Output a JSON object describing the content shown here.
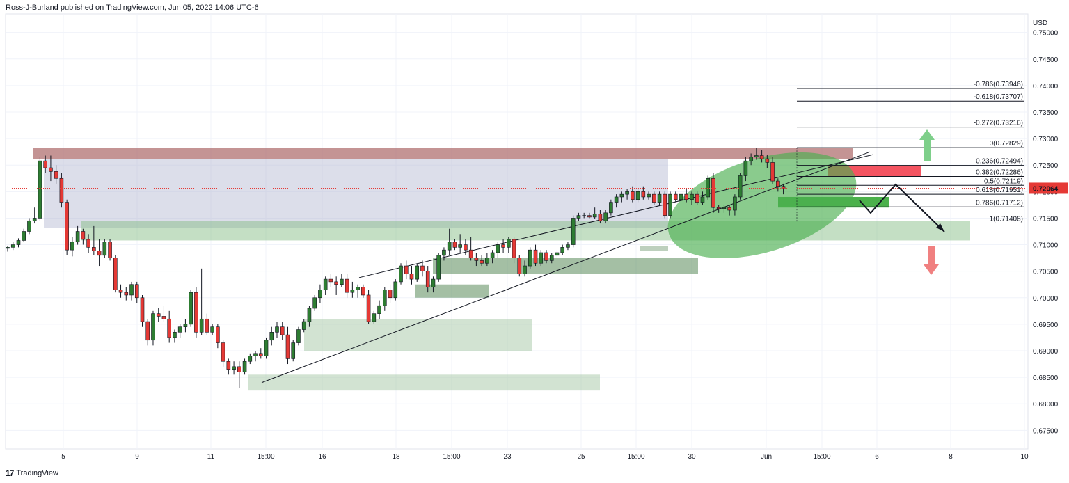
{
  "header": {
    "text": "Ross-J-Burland published on TradingView.com, Jun 05, 2022 14:06 UTC-6"
  },
  "footer": {
    "brand": "TradingView"
  },
  "colors": {
    "bull": "#2e7d32",
    "bear": "#e53935",
    "zone": "#7cb87c",
    "resistance": "#b07070",
    "ellipse": "#4caf50",
    "current_price": "#e53935"
  },
  "chart_data": {
    "type": "candlestick",
    "currency": "USD",
    "ylim": [
      0.6715,
      0.7535
    ],
    "y_ticks": [
      "0.75000",
      "0.74500",
      "0.74000",
      "0.73500",
      "0.73000",
      "0.72500",
      "0.72000",
      "0.71500",
      "0.71000",
      "0.70500",
      "0.70000",
      "0.69500",
      "0.69000",
      "0.68500",
      "0.68000",
      "0.67500"
    ],
    "x_ticks": [
      "5",
      "9",
      "11",
      "15:00",
      "16",
      "18",
      "15:00",
      "23",
      "25",
      "15:00",
      "30",
      "Jun",
      "15:00",
      "6",
      "8",
      "10"
    ],
    "current_price": "0.72064",
    "fib_levels": [
      {
        "label": "-0.786(0.73946)",
        "value": 0.73946
      },
      {
        "label": "-0.618(0.73707)",
        "value": 0.73707
      },
      {
        "label": "-0.272(0.73216)",
        "value": 0.73216
      },
      {
        "label": "0(0.72829)",
        "value": 0.72829
      },
      {
        "label": "0.236(0.72494)",
        "value": 0.72494
      },
      {
        "label": "0.382(0.72286)",
        "value": 0.72286
      },
      {
        "label": "0.5(0.72119)",
        "value": 0.72119
      },
      {
        "label": "0.618(0.71951)",
        "value": 0.71951
      },
      {
        "label": "0.786(0.71712)",
        "value": 0.71712
      },
      {
        "label": "1(0.71408)",
        "value": 0.71408
      }
    ],
    "candles": [
      {
        "o": 0.7093,
        "h": 0.7098,
        "l": 0.7087,
        "c": 0.7095
      },
      {
        "o": 0.7095,
        "h": 0.7105,
        "l": 0.709,
        "c": 0.71
      },
      {
        "o": 0.71,
        "h": 0.7112,
        "l": 0.7095,
        "c": 0.7108
      },
      {
        "o": 0.7108,
        "h": 0.713,
        "l": 0.7105,
        "c": 0.7125
      },
      {
        "o": 0.7125,
        "h": 0.715,
        "l": 0.712,
        "c": 0.7145
      },
      {
        "o": 0.7145,
        "h": 0.717,
        "l": 0.714,
        "c": 0.715
      },
      {
        "o": 0.715,
        "h": 0.7265,
        "l": 0.7145,
        "c": 0.7258
      },
      {
        "o": 0.7258,
        "h": 0.7268,
        "l": 0.7235,
        "c": 0.7245
      },
      {
        "o": 0.7245,
        "h": 0.7268,
        "l": 0.722,
        "c": 0.7238
      },
      {
        "o": 0.7238,
        "h": 0.725,
        "l": 0.7215,
        "c": 0.7225
      },
      {
        "o": 0.7225,
        "h": 0.7235,
        "l": 0.717,
        "c": 0.718
      },
      {
        "o": 0.718,
        "h": 0.7185,
        "l": 0.708,
        "c": 0.709
      },
      {
        "o": 0.709,
        "h": 0.7115,
        "l": 0.7078,
        "c": 0.7105
      },
      {
        "o": 0.7105,
        "h": 0.7135,
        "l": 0.71,
        "c": 0.7125
      },
      {
        "o": 0.7125,
        "h": 0.713,
        "l": 0.71,
        "c": 0.711
      },
      {
        "o": 0.711,
        "h": 0.712,
        "l": 0.7085,
        "c": 0.7095
      },
      {
        "o": 0.7095,
        "h": 0.7135,
        "l": 0.708,
        "c": 0.7088
      },
      {
        "o": 0.7088,
        "h": 0.711,
        "l": 0.706,
        "c": 0.708
      },
      {
        "o": 0.708,
        "h": 0.711,
        "l": 0.7075,
        "c": 0.7105
      },
      {
        "o": 0.7105,
        "h": 0.711,
        "l": 0.707,
        "c": 0.7075
      },
      {
        "o": 0.7075,
        "h": 0.708,
        "l": 0.701,
        "c": 0.7015
      },
      {
        "o": 0.7015,
        "h": 0.7025,
        "l": 0.7,
        "c": 0.701
      },
      {
        "o": 0.701,
        "h": 0.702,
        "l": 0.6995,
        "c": 0.7005
      },
      {
        "o": 0.7005,
        "h": 0.703,
        "l": 0.6995,
        "c": 0.7025
      },
      {
        "o": 0.7025,
        "h": 0.703,
        "l": 0.699,
        "c": 0.7
      },
      {
        "o": 0.7,
        "h": 0.7005,
        "l": 0.6945,
        "c": 0.6955
      },
      {
        "o": 0.6955,
        "h": 0.696,
        "l": 0.691,
        "c": 0.692
      },
      {
        "o": 0.692,
        "h": 0.6975,
        "l": 0.691,
        "c": 0.697
      },
      {
        "o": 0.697,
        "h": 0.698,
        "l": 0.6955,
        "c": 0.6965
      },
      {
        "o": 0.6965,
        "h": 0.6985,
        "l": 0.6955,
        "c": 0.696
      },
      {
        "o": 0.696,
        "h": 0.6975,
        "l": 0.6915,
        "c": 0.6925
      },
      {
        "o": 0.6925,
        "h": 0.694,
        "l": 0.6915,
        "c": 0.6935
      },
      {
        "o": 0.6935,
        "h": 0.695,
        "l": 0.6925,
        "c": 0.6945
      },
      {
        "o": 0.6945,
        "h": 0.696,
        "l": 0.6935,
        "c": 0.695
      },
      {
        "o": 0.695,
        "h": 0.7015,
        "l": 0.6945,
        "c": 0.701
      },
      {
        "o": 0.701,
        "h": 0.702,
        "l": 0.6925,
        "c": 0.6935
      },
      {
        "o": 0.6935,
        "h": 0.7055,
        "l": 0.693,
        "c": 0.696
      },
      {
        "o": 0.696,
        "h": 0.697,
        "l": 0.693,
        "c": 0.6935
      },
      {
        "o": 0.6935,
        "h": 0.695,
        "l": 0.693,
        "c": 0.6945
      },
      {
        "o": 0.6945,
        "h": 0.695,
        "l": 0.6905,
        "c": 0.6915
      },
      {
        "o": 0.6915,
        "h": 0.692,
        "l": 0.687,
        "c": 0.688
      },
      {
        "o": 0.688,
        "h": 0.6885,
        "l": 0.6855,
        "c": 0.6865
      },
      {
        "o": 0.6865,
        "h": 0.688,
        "l": 0.6855,
        "c": 0.687
      },
      {
        "o": 0.687,
        "h": 0.688,
        "l": 0.683,
        "c": 0.686
      },
      {
        "o": 0.686,
        "h": 0.6885,
        "l": 0.6855,
        "c": 0.688
      },
      {
        "o": 0.688,
        "h": 0.6895,
        "l": 0.6875,
        "c": 0.689
      },
      {
        "o": 0.689,
        "h": 0.69,
        "l": 0.688,
        "c": 0.6895
      },
      {
        "o": 0.6895,
        "h": 0.6905,
        "l": 0.6885,
        "c": 0.689
      },
      {
        "o": 0.689,
        "h": 0.6925,
        "l": 0.6885,
        "c": 0.692
      },
      {
        "o": 0.692,
        "h": 0.6945,
        "l": 0.691,
        "c": 0.6935
      },
      {
        "o": 0.6935,
        "h": 0.6955,
        "l": 0.6925,
        "c": 0.6945
      },
      {
        "o": 0.6945,
        "h": 0.6955,
        "l": 0.692,
        "c": 0.693
      },
      {
        "o": 0.693,
        "h": 0.6945,
        "l": 0.6875,
        "c": 0.6885
      },
      {
        "o": 0.6885,
        "h": 0.692,
        "l": 0.688,
        "c": 0.6915
      },
      {
        "o": 0.6915,
        "h": 0.6945,
        "l": 0.691,
        "c": 0.694
      },
      {
        "o": 0.694,
        "h": 0.696,
        "l": 0.6935,
        "c": 0.6955
      },
      {
        "o": 0.6955,
        "h": 0.6985,
        "l": 0.6945,
        "c": 0.698
      },
      {
        "o": 0.698,
        "h": 0.7005,
        "l": 0.6975,
        "c": 0.7
      },
      {
        "o": 0.7,
        "h": 0.7025,
        "l": 0.699,
        "c": 0.7015
      },
      {
        "o": 0.7015,
        "h": 0.704,
        "l": 0.7005,
        "c": 0.7035
      },
      {
        "o": 0.7035,
        "h": 0.7045,
        "l": 0.702,
        "c": 0.703
      },
      {
        "o": 0.703,
        "h": 0.704,
        "l": 0.7005,
        "c": 0.7025
      },
      {
        "o": 0.7025,
        "h": 0.7045,
        "l": 0.702,
        "c": 0.7035
      },
      {
        "o": 0.7035,
        "h": 0.7045,
        "l": 0.7,
        "c": 0.701
      },
      {
        "o": 0.701,
        "h": 0.703,
        "l": 0.7,
        "c": 0.7015
      },
      {
        "o": 0.7015,
        "h": 0.7025,
        "l": 0.7,
        "c": 0.702
      },
      {
        "o": 0.702,
        "h": 0.7025,
        "l": 0.7,
        "c": 0.7005
      },
      {
        "o": 0.7005,
        "h": 0.7015,
        "l": 0.695,
        "c": 0.6955
      },
      {
        "o": 0.6955,
        "h": 0.6975,
        "l": 0.695,
        "c": 0.697
      },
      {
        "o": 0.697,
        "h": 0.6995,
        "l": 0.696,
        "c": 0.6985
      },
      {
        "o": 0.6985,
        "h": 0.702,
        "l": 0.6975,
        "c": 0.7015
      },
      {
        "o": 0.7015,
        "h": 0.7025,
        "l": 0.699,
        "c": 0.7
      },
      {
        "o": 0.7,
        "h": 0.7035,
        "l": 0.6995,
        "c": 0.703
      },
      {
        "o": 0.703,
        "h": 0.7065,
        "l": 0.7025,
        "c": 0.706
      },
      {
        "o": 0.706,
        "h": 0.707,
        "l": 0.7035,
        "c": 0.7045
      },
      {
        "o": 0.7045,
        "h": 0.706,
        "l": 0.7025,
        "c": 0.7035
      },
      {
        "o": 0.7035,
        "h": 0.7065,
        "l": 0.703,
        "c": 0.706
      },
      {
        "o": 0.706,
        "h": 0.707,
        "l": 0.704,
        "c": 0.705
      },
      {
        "o": 0.705,
        "h": 0.706,
        "l": 0.701,
        "c": 0.702
      },
      {
        "o": 0.702,
        "h": 0.704,
        "l": 0.701,
        "c": 0.7035
      },
      {
        "o": 0.7035,
        "h": 0.7085,
        "l": 0.703,
        "c": 0.708
      },
      {
        "o": 0.708,
        "h": 0.7095,
        "l": 0.707,
        "c": 0.709
      },
      {
        "o": 0.709,
        "h": 0.713,
        "l": 0.708,
        "c": 0.7105
      },
      {
        "o": 0.7105,
        "h": 0.711,
        "l": 0.709,
        "c": 0.7095
      },
      {
        "o": 0.7095,
        "h": 0.712,
        "l": 0.7085,
        "c": 0.71
      },
      {
        "o": 0.71,
        "h": 0.711,
        "l": 0.708,
        "c": 0.709
      },
      {
        "o": 0.709,
        "h": 0.7115,
        "l": 0.707,
        "c": 0.7075
      },
      {
        "o": 0.7075,
        "h": 0.7085,
        "l": 0.706,
        "c": 0.707
      },
      {
        "o": 0.707,
        "h": 0.708,
        "l": 0.706,
        "c": 0.7065
      },
      {
        "o": 0.7065,
        "h": 0.7085,
        "l": 0.706,
        "c": 0.7075
      },
      {
        "o": 0.7075,
        "h": 0.709,
        "l": 0.7065,
        "c": 0.7085
      },
      {
        "o": 0.7085,
        "h": 0.7105,
        "l": 0.7075,
        "c": 0.71
      },
      {
        "o": 0.71,
        "h": 0.711,
        "l": 0.7085,
        "c": 0.7095
      },
      {
        "o": 0.7095,
        "h": 0.7115,
        "l": 0.7085,
        "c": 0.711
      },
      {
        "o": 0.711,
        "h": 0.7115,
        "l": 0.7065,
        "c": 0.7075
      },
      {
        "o": 0.7075,
        "h": 0.708,
        "l": 0.704,
        "c": 0.7045
      },
      {
        "o": 0.7045,
        "h": 0.707,
        "l": 0.704,
        "c": 0.706
      },
      {
        "o": 0.706,
        "h": 0.7095,
        "l": 0.7055,
        "c": 0.709
      },
      {
        "o": 0.709,
        "h": 0.71,
        "l": 0.706,
        "c": 0.7065
      },
      {
        "o": 0.7065,
        "h": 0.709,
        "l": 0.706,
        "c": 0.7085
      },
      {
        "o": 0.7085,
        "h": 0.709,
        "l": 0.7065,
        "c": 0.707
      },
      {
        "o": 0.707,
        "h": 0.7085,
        "l": 0.7065,
        "c": 0.708
      },
      {
        "o": 0.708,
        "h": 0.709,
        "l": 0.7075,
        "c": 0.7085
      },
      {
        "o": 0.7085,
        "h": 0.71,
        "l": 0.708,
        "c": 0.7095
      },
      {
        "o": 0.7095,
        "h": 0.7105,
        "l": 0.709,
        "c": 0.71
      },
      {
        "o": 0.71,
        "h": 0.7155,
        "l": 0.7095,
        "c": 0.715
      },
      {
        "o": 0.715,
        "h": 0.716,
        "l": 0.7145,
        "c": 0.7155
      },
      {
        "o": 0.7155,
        "h": 0.716,
        "l": 0.715,
        "c": 0.7155
      },
      {
        "o": 0.7155,
        "h": 0.716,
        "l": 0.715,
        "c": 0.7152
      },
      {
        "o": 0.7152,
        "h": 0.717,
        "l": 0.7148,
        "c": 0.7158
      },
      {
        "o": 0.7158,
        "h": 0.7165,
        "l": 0.714,
        "c": 0.7145
      },
      {
        "o": 0.7145,
        "h": 0.7165,
        "l": 0.714,
        "c": 0.716
      },
      {
        "o": 0.716,
        "h": 0.7185,
        "l": 0.7155,
        "c": 0.718
      },
      {
        "o": 0.718,
        "h": 0.7195,
        "l": 0.717,
        "c": 0.719
      },
      {
        "o": 0.719,
        "h": 0.72,
        "l": 0.718,
        "c": 0.7195
      },
      {
        "o": 0.7195,
        "h": 0.7205,
        "l": 0.7185,
        "c": 0.72
      },
      {
        "o": 0.72,
        "h": 0.721,
        "l": 0.718,
        "c": 0.7185
      },
      {
        "o": 0.7185,
        "h": 0.7205,
        "l": 0.718,
        "c": 0.72
      },
      {
        "o": 0.72,
        "h": 0.721,
        "l": 0.7185,
        "c": 0.719
      },
      {
        "o": 0.719,
        "h": 0.72,
        "l": 0.7185,
        "c": 0.7195
      },
      {
        "o": 0.7195,
        "h": 0.72,
        "l": 0.7175,
        "c": 0.718
      },
      {
        "o": 0.718,
        "h": 0.72,
        "l": 0.7175,
        "c": 0.7195
      },
      {
        "o": 0.7195,
        "h": 0.72,
        "l": 0.715,
        "c": 0.7155
      },
      {
        "o": 0.7155,
        "h": 0.72,
        "l": 0.715,
        "c": 0.7195
      },
      {
        "o": 0.7195,
        "h": 0.72,
        "l": 0.718,
        "c": 0.7185
      },
      {
        "o": 0.7185,
        "h": 0.72,
        "l": 0.718,
        "c": 0.7195
      },
      {
        "o": 0.7195,
        "h": 0.7205,
        "l": 0.718,
        "c": 0.7185
      },
      {
        "o": 0.7185,
        "h": 0.72,
        "l": 0.7175,
        "c": 0.7195
      },
      {
        "o": 0.7195,
        "h": 0.72,
        "l": 0.7175,
        "c": 0.718
      },
      {
        "o": 0.718,
        "h": 0.72,
        "l": 0.7175,
        "c": 0.719
      },
      {
        "o": 0.719,
        "h": 0.723,
        "l": 0.7185,
        "c": 0.7225
      },
      {
        "o": 0.7225,
        "h": 0.7235,
        "l": 0.716,
        "c": 0.717
      },
      {
        "o": 0.717,
        "h": 0.7175,
        "l": 0.716,
        "c": 0.7168
      },
      {
        "o": 0.7168,
        "h": 0.7175,
        "l": 0.716,
        "c": 0.717
      },
      {
        "o": 0.717,
        "h": 0.7175,
        "l": 0.7155,
        "c": 0.7165
      },
      {
        "o": 0.7165,
        "h": 0.7195,
        "l": 0.7155,
        "c": 0.719
      },
      {
        "o": 0.719,
        "h": 0.7235,
        "l": 0.7185,
        "c": 0.723
      },
      {
        "o": 0.723,
        "h": 0.7265,
        "l": 0.722,
        "c": 0.7258
      },
      {
        "o": 0.7258,
        "h": 0.7272,
        "l": 0.725,
        "c": 0.7265
      },
      {
        "o": 0.7265,
        "h": 0.7283,
        "l": 0.726,
        "c": 0.7268
      },
      {
        "o": 0.7268,
        "h": 0.7278,
        "l": 0.7255,
        "c": 0.7262
      },
      {
        "o": 0.7262,
        "h": 0.727,
        "l": 0.7245,
        "c": 0.7255
      },
      {
        "o": 0.7255,
        "h": 0.7265,
        "l": 0.7215,
        "c": 0.722
      },
      {
        "o": 0.722,
        "h": 0.7225,
        "l": 0.72,
        "c": 0.721
      },
      {
        "o": 0.721,
        "h": 0.7215,
        "l": 0.7195,
        "c": 0.7206
      }
    ]
  }
}
